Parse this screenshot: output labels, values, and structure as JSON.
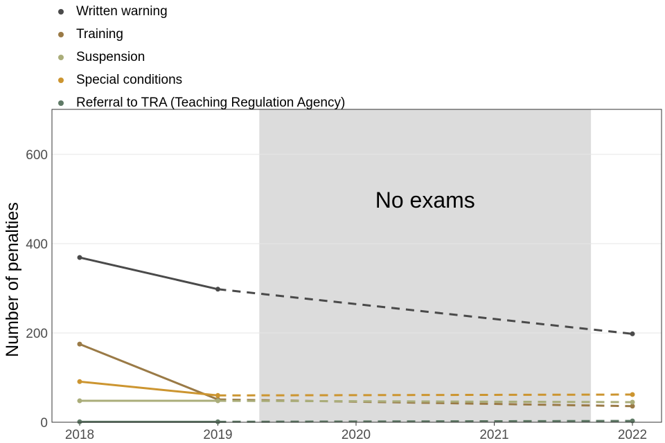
{
  "chart_data": {
    "type": "line",
    "ylabel": "Number of penalties",
    "xlabel": "",
    "x": [
      2018,
      2019,
      2022
    ],
    "xticks": [
      "2018",
      "2019",
      "2020",
      "2021",
      "2022"
    ],
    "yticks": [
      "0",
      "200",
      "400",
      "600"
    ],
    "ylim": [
      0,
      700
    ],
    "xlim": [
      2017.8,
      2022.2
    ],
    "grid": true,
    "legend_position": "top-left",
    "annotation": {
      "text": "No exams",
      "x_range": [
        2019.3,
        2021.7
      ],
      "fill": "#dcdcdc"
    },
    "dashed_segment": "2019-2022",
    "series": [
      {
        "name": "Written warning",
        "color": "#4a4a4a",
        "values": [
          369,
          298,
          198
        ]
      },
      {
        "name": "Training",
        "color": "#9a7a46",
        "values": [
          175,
          51,
          36
        ]
      },
      {
        "name": "Suspension",
        "color": "#aaad7a",
        "values": [
          48,
          48,
          45
        ]
      },
      {
        "name": "Special conditions",
        "color": "#cc9530",
        "values": [
          91,
          60,
          62
        ]
      },
      {
        "name": "Referral to TRA (Teaching Regulation Agency)",
        "color": "#5f7a66",
        "values": [
          1,
          1,
          3
        ]
      }
    ]
  }
}
